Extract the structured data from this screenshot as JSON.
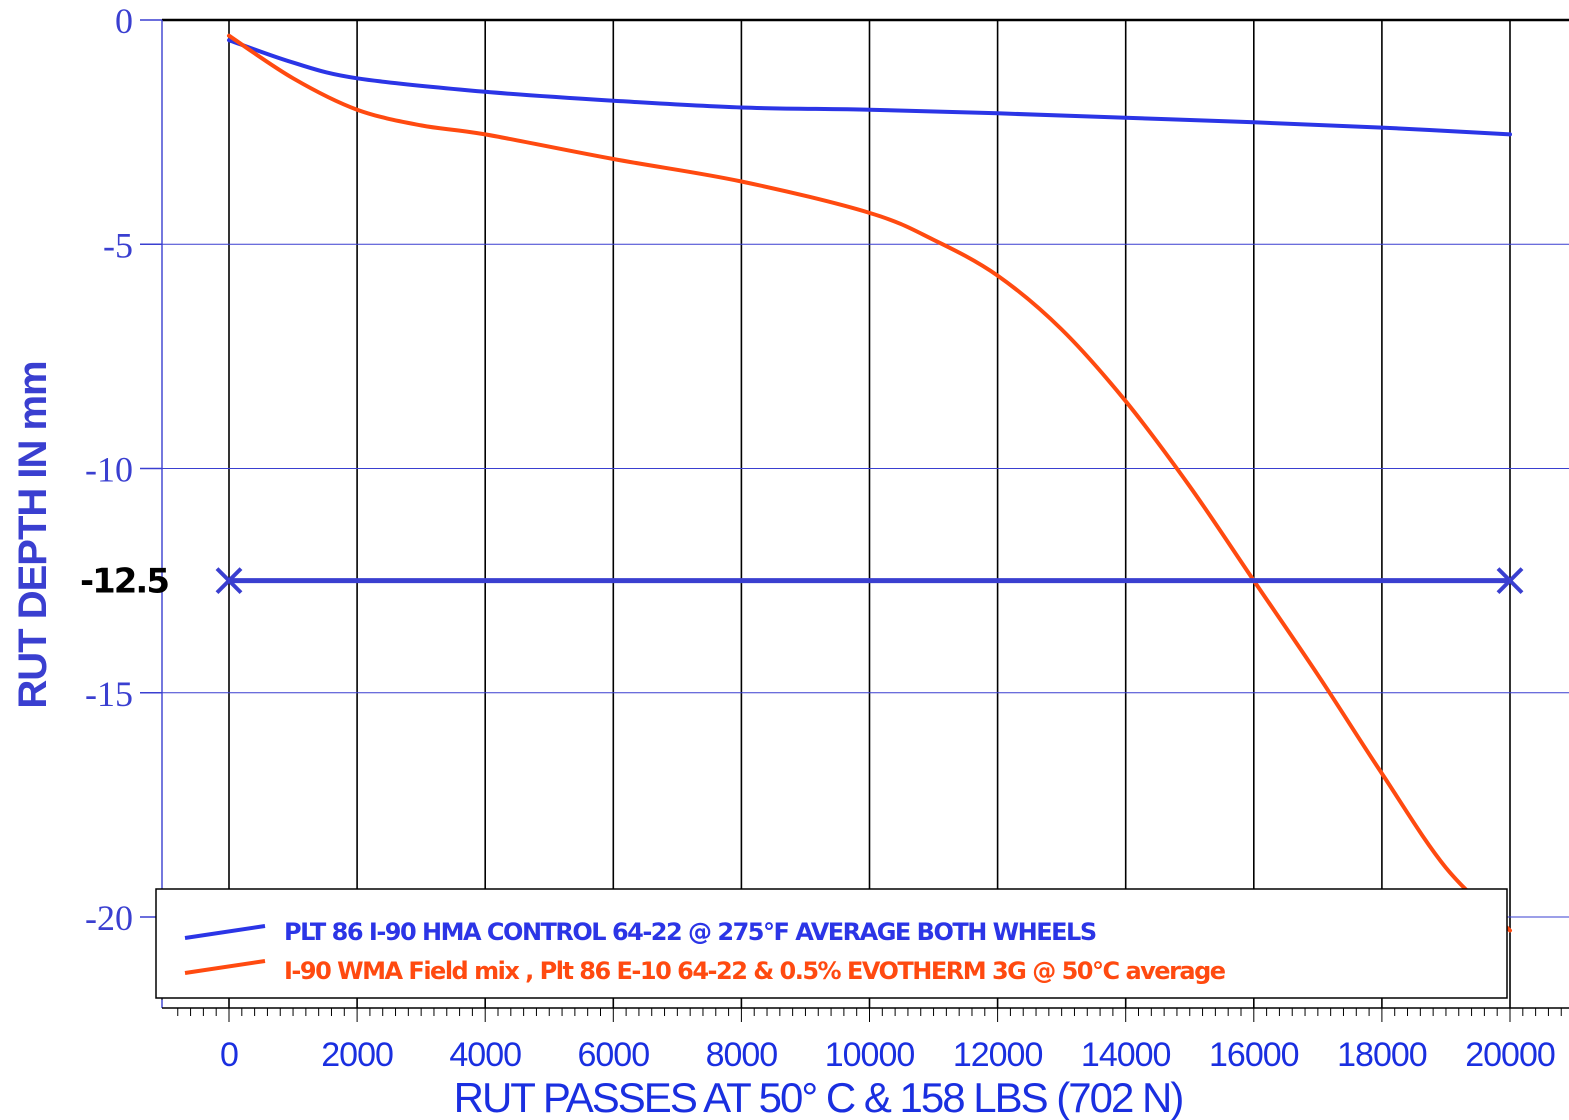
{
  "chart_data": {
    "type": "line",
    "xlabel": "RUT PASSES AT 50° C & 158 LBS (702 N)",
    "ylabel": "RUT DEPTH IN mm",
    "xlim": [
      -1000,
      20800
    ],
    "ylim": [
      -22,
      0
    ],
    "x_ticks": [
      0,
      2000,
      4000,
      6000,
      8000,
      10000,
      12000,
      14000,
      16000,
      18000,
      20000
    ],
    "x_tick_labels": [
      "0",
      "2000",
      "4000",
      "6000",
      "8000",
      "10000",
      "12000",
      "14000",
      "16000",
      "18000",
      "20000"
    ],
    "y_ticks": [
      0,
      -5,
      -10,
      -15,
      -20
    ],
    "y_tick_labels": [
      "0",
      "-5",
      "-10",
      "-15",
      "-20"
    ],
    "grid": true,
    "legend_position": "bottom",
    "series": [
      {
        "name": "PLT 86 I-90 HMA CONTROL 64-22 @ 275°F AVERAGE BOTH WHEELS",
        "color": "#2b35e6",
        "x": [
          0,
          1000,
          2000,
          4000,
          6000,
          8000,
          10000,
          12000,
          14000,
          16000,
          18000,
          20000
        ],
        "y": [
          -0.45,
          -0.95,
          -1.3,
          -1.6,
          -1.8,
          -1.95,
          -2.0,
          -2.08,
          -2.18,
          -2.28,
          -2.4,
          -2.55
        ]
      },
      {
        "name": "I-90 WMA Field mix , Plt 86 E-10  64-22 & 0.5% EVOTHERM 3G @ 50°C average",
        "color": "#ff4a10",
        "x": [
          0,
          1000,
          2000,
          3000,
          4000,
          6000,
          8000,
          10000,
          11000,
          12000,
          13000,
          14000,
          15000,
          16000,
          17000,
          18000,
          19000,
          20000
        ],
        "y": [
          -0.35,
          -1.3,
          -2.0,
          -2.35,
          -2.55,
          -3.1,
          -3.6,
          -4.3,
          -4.9,
          -5.7,
          -6.9,
          -8.5,
          -10.4,
          -12.5,
          -14.6,
          -16.8,
          -18.9,
          -20.3
        ]
      }
    ],
    "reference_line": {
      "label": "-12.5",
      "y": -12.5,
      "x": [
        0,
        20000
      ],
      "color": "#3a3fd0"
    }
  }
}
